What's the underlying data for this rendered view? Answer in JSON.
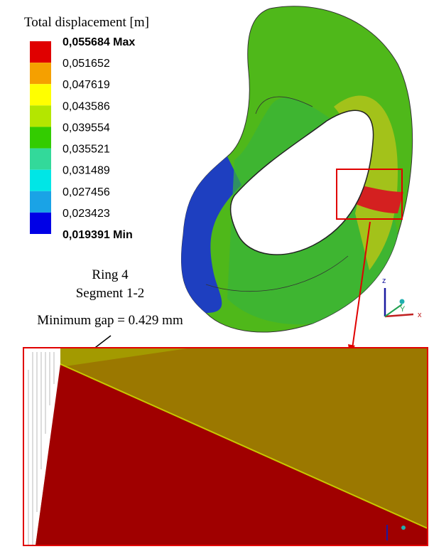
{
  "legend": {
    "title": "Total displacement [m]",
    "labels": [
      "0,055684 Max",
      "0,051652",
      "0,047619",
      "0,043586",
      "0,039554",
      "0,035521",
      "0,031489",
      "0,027456",
      "0,023423",
      "0,019391 Min"
    ],
    "colors": [
      "#e00000",
      "#f5a000",
      "#ffff00",
      "#b4e600",
      "#33cc00",
      "#33d99a",
      "#00e6e6",
      "#1aa3e6",
      "#0000e6"
    ]
  },
  "annotation": {
    "lines": [
      "Ring 4",
      "Segment 1-2",
      "Minimum gap = 0.429 mm"
    ]
  },
  "triad": {
    "z": "z",
    "y": "Y",
    "x": "x"
  }
}
